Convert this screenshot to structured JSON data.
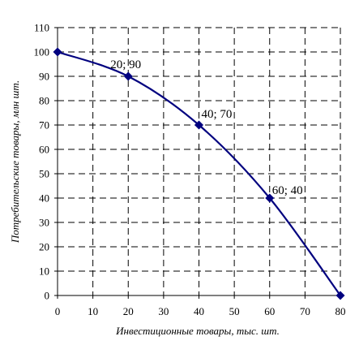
{
  "chart_data": {
    "type": "line",
    "title": "",
    "xlabel": "Инвестиционные товары, тыс. шт.",
    "ylabel": "Потребительские товары, млн шт.",
    "xlim": [
      0,
      80
    ],
    "ylim": [
      0,
      110
    ],
    "xticks": [
      0,
      10,
      20,
      30,
      40,
      50,
      60,
      70,
      80
    ],
    "yticks": [
      0,
      10,
      20,
      30,
      40,
      50,
      60,
      70,
      80,
      90,
      100,
      110
    ],
    "grid": true,
    "series": [
      {
        "color": "#00007f",
        "x": [
          0,
          20,
          40,
          60,
          80
        ],
        "y": [
          100,
          90,
          70,
          40,
          0
        ]
      }
    ],
    "annotations": [
      {
        "text": "20; 90",
        "x": 20,
        "y": 90
      },
      {
        "text": "40; 70",
        "x": 40,
        "y": 70
      },
      {
        "text": "60; 40",
        "x": 60,
        "y": 40
      }
    ]
  }
}
